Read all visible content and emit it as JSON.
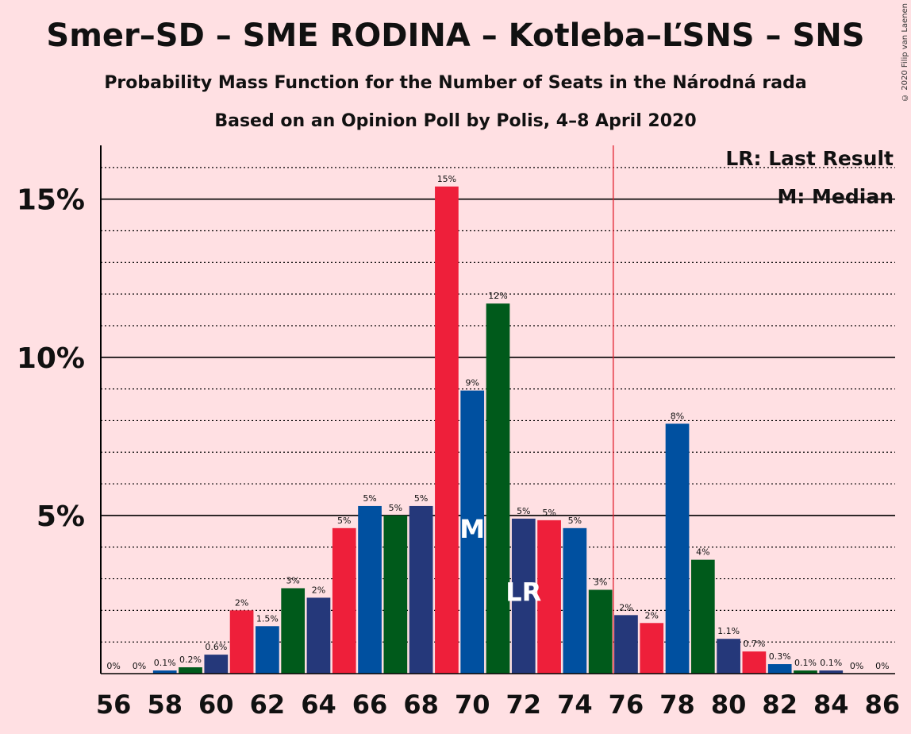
{
  "title": "Smer–SD – SME RODINA – Kotleba–ĽSNS – SNS",
  "subtitle1": "Probability Mass Function for the Number of Seats in the Národná rada",
  "subtitle2": "Based on an Opinion Poll by Polis, 4–8 April 2020",
  "copyright": "© 2020 Filip van Laenen",
  "chart_data": {
    "type": "bar",
    "x": [
      56,
      57,
      58,
      59,
      60,
      61,
      62,
      63,
      64,
      65,
      66,
      67,
      68,
      69,
      70,
      71,
      72,
      73,
      74,
      75,
      76,
      77,
      78,
      79,
      80,
      81,
      82,
      83,
      84,
      85,
      86
    ],
    "values": [
      0,
      0,
      0.1,
      0.2,
      0.6,
      2,
      1.5,
      2.7,
      2.4,
      4.6,
      5.3,
      5.0,
      5.3,
      15.4,
      8.95,
      11.7,
      4.9,
      4.85,
      4.6,
      2.65,
      1.85,
      1.6,
      7.9,
      3.6,
      1.1,
      0.7,
      0.3,
      0.1,
      0.1,
      0,
      0
    ],
    "data_labels": [
      "0%",
      "0%",
      "0.1%",
      "0.2%",
      "0.6%",
      "2%",
      "1.5%",
      "3%",
      "2%",
      "5%",
      "5%",
      "5%",
      "5%",
      "15%",
      "9%",
      "12%",
      "5%",
      "5%",
      "5%",
      "3%",
      "2%",
      "2%",
      "8%",
      "4%",
      "1.1%",
      "0.7%",
      "0.3%",
      "0.1%",
      "0.1%",
      "0%",
      "0%"
    ],
    "xticks": [
      56,
      58,
      60,
      62,
      64,
      66,
      68,
      70,
      72,
      74,
      76,
      78,
      80,
      82,
      84,
      86
    ],
    "yticks": [
      {
        "value": 5,
        "label": "5%"
      },
      {
        "value": 10,
        "label": "10%"
      },
      {
        "value": 15,
        "label": "15%"
      }
    ],
    "ylim": [
      0,
      16.7
    ],
    "xlim": [
      55.5,
      86.5
    ],
    "majority_line": 75.5,
    "median": 70,
    "median_label": "M",
    "last_result": 72,
    "last_result_label": "LR",
    "legend": [
      "LR: Last Result",
      "M: Median"
    ],
    "legend_placement": "top-right",
    "palette": [
      "#0050a0",
      "#005a1b",
      "#25387a",
      "#ee1f3a"
    ],
    "majority_color": "#e21f2e",
    "grid": "dotted minor every 1%, solid major every 5%"
  }
}
